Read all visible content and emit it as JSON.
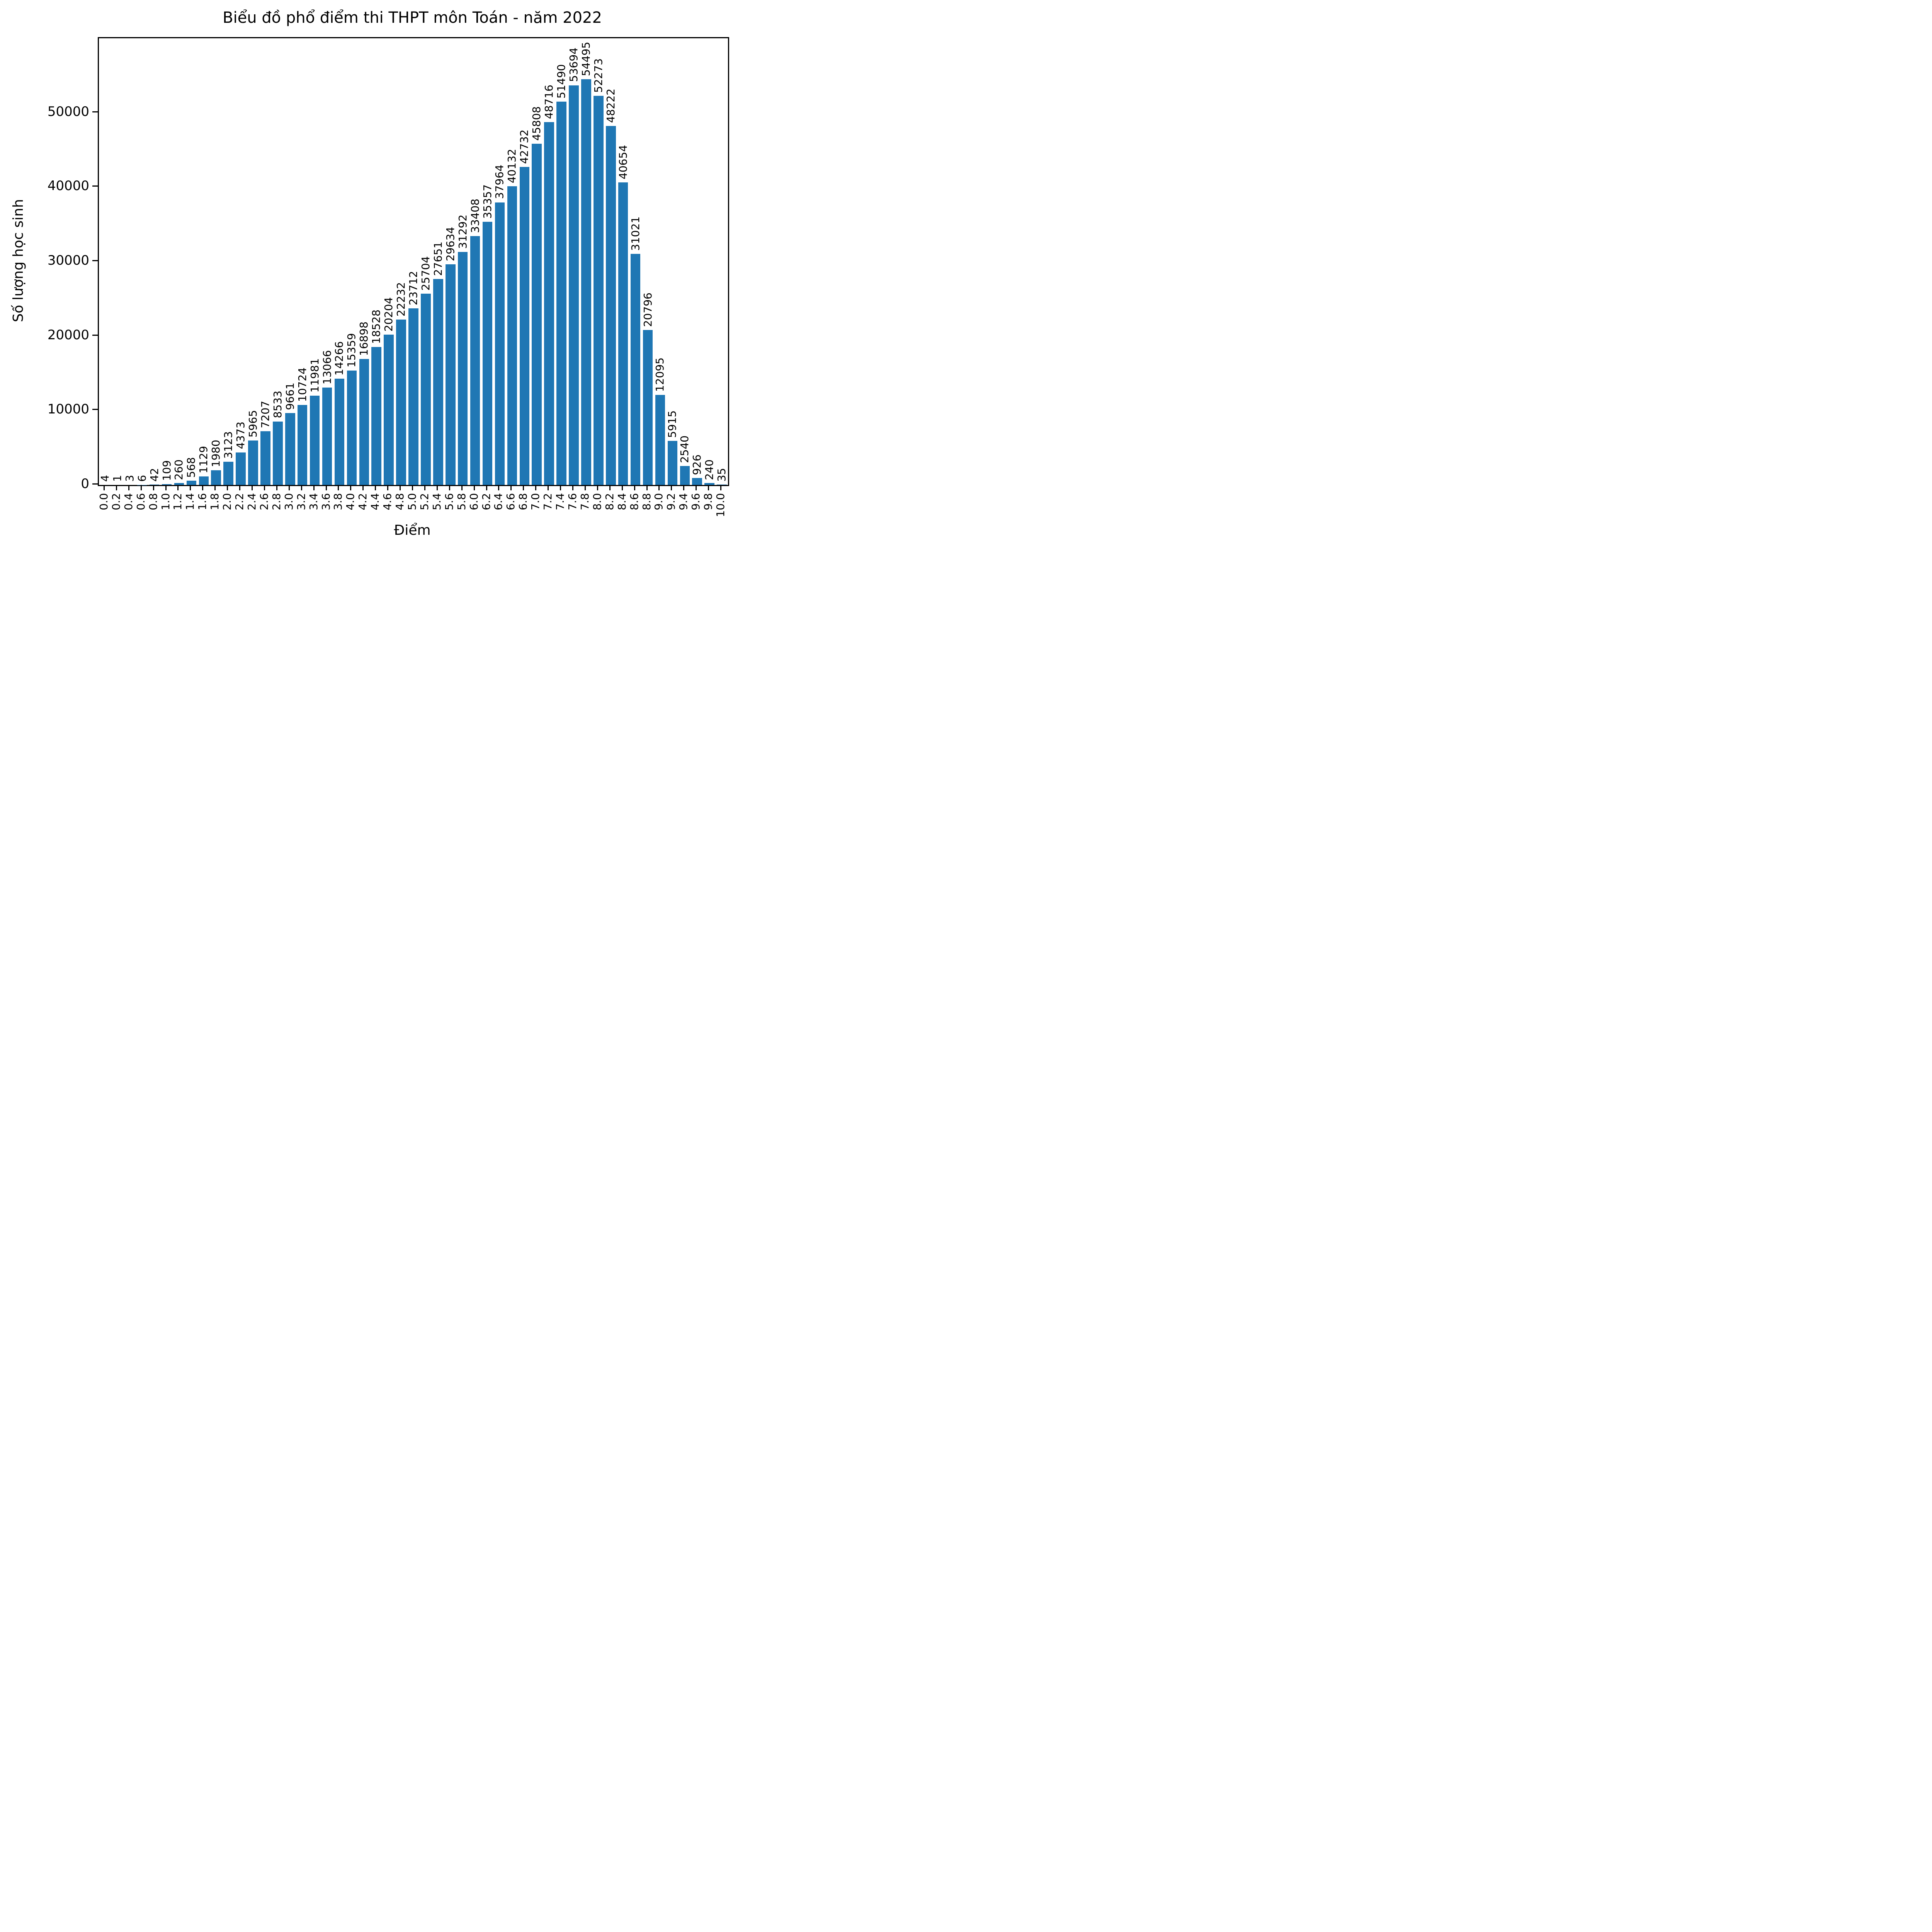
{
  "chart_data": {
    "type": "bar",
    "title": "Biểu đồ phổ điểm thi THPT môn Toán - năm 2022",
    "xlabel": "Điểm",
    "ylabel": "Số lượng học sinh",
    "categories": [
      "0.0",
      "0.2",
      "0.4",
      "0.6",
      "0.8",
      "1.0",
      "1.2",
      "1.4",
      "1.6",
      "1.8",
      "2.0",
      "2.2",
      "2.4",
      "2.6",
      "2.8",
      "3.0",
      "3.2",
      "3.4",
      "3.6",
      "3.8",
      "4.0",
      "4.2",
      "4.4",
      "4.6",
      "4.8",
      "5.0",
      "5.2",
      "5.4",
      "5.6",
      "5.8",
      "6.0",
      "6.2",
      "6.4",
      "6.6",
      "6.8",
      "7.0",
      "7.2",
      "7.4",
      "7.6",
      "7.8",
      "8.0",
      "8.2",
      "8.4",
      "8.6",
      "8.8",
      "9.0",
      "9.2",
      "9.4",
      "9.6",
      "9.8",
      "10.0"
    ],
    "values": [
      4,
      1,
      3,
      6,
      42,
      109,
      260,
      568,
      1129,
      1980,
      3123,
      4373,
      5965,
      7207,
      8533,
      9661,
      10724,
      11981,
      13066,
      14266,
      15359,
      16898,
      18528,
      20204,
      22232,
      23712,
      25704,
      27651,
      29634,
      31292,
      33408,
      35357,
      37964,
      40132,
      42732,
      45808,
      48716,
      51490,
      53694,
      54495,
      52273,
      48222,
      40654,
      31021,
      20796,
      12095,
      5915,
      2540,
      926,
      240,
      35
    ],
    "yticks": [
      0,
      10000,
      20000,
      30000,
      40000,
      50000
    ],
    "ylim": [
      0,
      60000
    ],
    "bar_color": "#1f77b4",
    "bar_label_rotation": 90,
    "x_tick_rotation": 90,
    "grid": false,
    "legend_position": "none"
  }
}
